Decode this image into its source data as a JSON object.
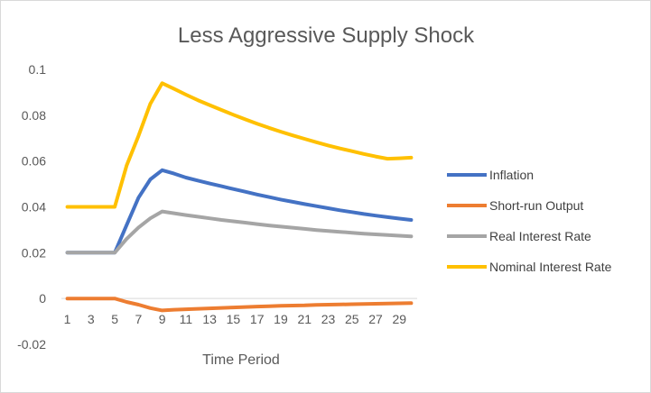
{
  "chart_data": {
    "type": "line",
    "title": "Less Aggressive Supply Shock",
    "xlabel": "Time Period",
    "ylabel": "",
    "x": [
      1,
      2,
      3,
      4,
      5,
      6,
      7,
      8,
      9,
      10,
      11,
      12,
      13,
      14,
      15,
      16,
      17,
      18,
      19,
      20,
      21,
      22,
      23,
      24,
      25,
      26,
      27,
      28,
      29,
      30
    ],
    "x_tick_labels": [
      "1",
      "3",
      "5",
      "7",
      "9",
      "11",
      "13",
      "15",
      "17",
      "19",
      "21",
      "23",
      "25",
      "27",
      "29"
    ],
    "ylim": [
      -0.02,
      0.1
    ],
    "y_ticks": [
      -0.02,
      0,
      0.02,
      0.04,
      0.06,
      0.08,
      0.1
    ],
    "y_tick_labels": [
      "-0.02",
      "0",
      "0.02",
      "0.04",
      "0.06",
      "0.08",
      "0.1"
    ],
    "grid": false,
    "legend_position": "right",
    "series": [
      {
        "name": "Inflation",
        "color": "#4472C4",
        "values": [
          0.02,
          0.02,
          0.02,
          0.02,
          0.02,
          0.032,
          0.044,
          0.052,
          0.056,
          0.0545,
          0.0528,
          0.0515,
          0.0502,
          0.049,
          0.0478,
          0.0466,
          0.0454,
          0.0443,
          0.0432,
          0.0422,
          0.0412,
          0.0403,
          0.0394,
          0.0385,
          0.0377,
          0.0369,
          0.0362,
          0.0355,
          0.0349,
          0.0343
        ]
      },
      {
        "name": "Short-run Output",
        "color": "#ED7D31",
        "values": [
          0,
          0,
          0,
          0,
          0,
          -0.0015,
          -0.0027,
          -0.0042,
          -0.0052,
          -0.0049,
          -0.0047,
          -0.0045,
          -0.0043,
          -0.0041,
          -0.0039,
          -0.0037,
          -0.0035,
          -0.0034,
          -0.0032,
          -0.0031,
          -0.003,
          -0.0028,
          -0.0027,
          -0.0026,
          -0.0025,
          -0.0024,
          -0.0023,
          -0.0022,
          -0.0021,
          -0.002
        ]
      },
      {
        "name": "Real Interest Rate",
        "color": "#A5A5A5",
        "values": [
          0.02,
          0.02,
          0.02,
          0.02,
          0.02,
          0.026,
          0.031,
          0.035,
          0.038,
          0.0372,
          0.0364,
          0.0357,
          0.035,
          0.0343,
          0.0337,
          0.0331,
          0.0325,
          0.0319,
          0.0314,
          0.0309,
          0.0304,
          0.0299,
          0.0295,
          0.0291,
          0.0287,
          0.0283,
          0.028,
          0.0277,
          0.0274,
          0.0271
        ]
      },
      {
        "name": "Nominal Interest Rate",
        "color": "#FFC000",
        "values": [
          0.04,
          0.04,
          0.04,
          0.04,
          0.04,
          0.058,
          0.071,
          0.085,
          0.094,
          0.0915,
          0.089,
          0.0866,
          0.0844,
          0.0823,
          0.0802,
          0.0782,
          0.0763,
          0.0745,
          0.0728,
          0.0712,
          0.0697,
          0.0682,
          0.0668,
          0.0655,
          0.0643,
          0.0631,
          0.062,
          0.061,
          0.0612,
          0.0615
        ]
      }
    ]
  }
}
